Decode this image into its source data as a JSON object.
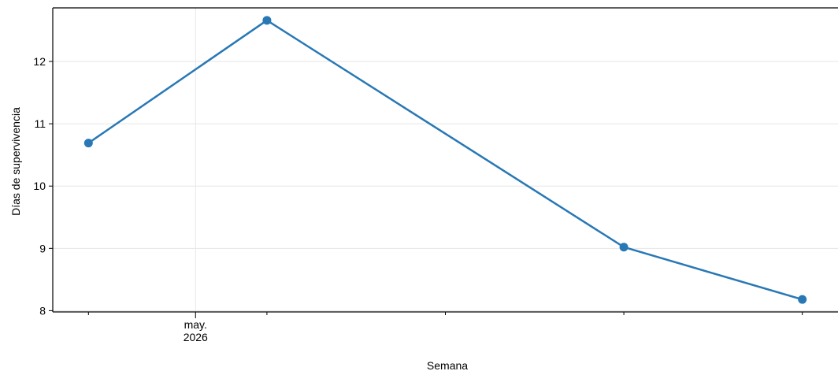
{
  "chart_data": {
    "type": "line",
    "title": "",
    "xlabel": "Semana",
    "ylabel": "Días de supervivencia",
    "x_ticks": [
      {
        "value": "2026-05-01",
        "label_lines": [
          "may.",
          "2026"
        ]
      }
    ],
    "x": [
      "2026-04-25",
      "2026-05-05",
      "2026-05-25",
      "2026-06-04"
    ],
    "xlim": [
      "2026-04-23",
      "2026-06-06"
    ],
    "series": [
      {
        "values": [
          10.69,
          12.66,
          9.02,
          8.18
        ]
      }
    ],
    "ylim": [
      7.98,
      12.86
    ],
    "yticks": [
      8,
      9,
      10,
      11,
      12
    ],
    "minor_x_ticks": [
      "2026-04-25",
      "2026-05-05",
      "2026-05-15",
      "2026-05-25",
      "2026-06-04"
    ],
    "grid": true,
    "colors": {
      "line": "#2878b5",
      "grid": "#e6e6e6",
      "axis": "#000000"
    }
  }
}
